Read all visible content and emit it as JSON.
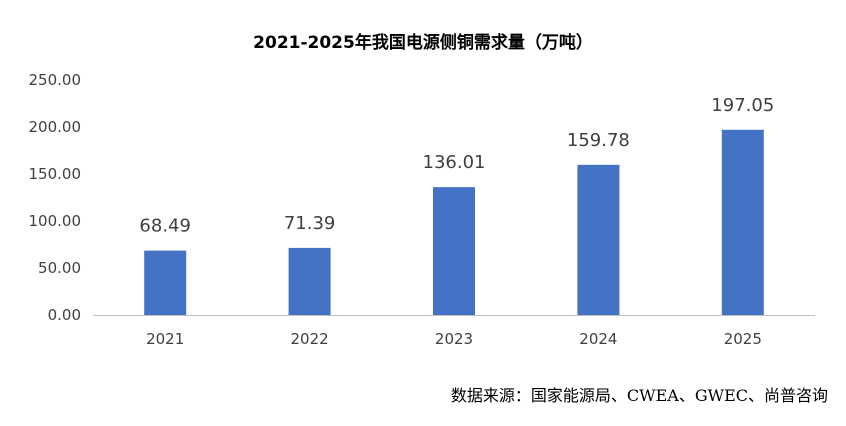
{
  "chart_data": {
    "type": "bar",
    "title": "2021-2025年我国电源侧铜需求量（万吨）",
    "categories": [
      "2021",
      "2022",
      "2023",
      "2024",
      "2025"
    ],
    "values": [
      68.49,
      71.39,
      136.01,
      159.78,
      197.05
    ],
    "value_labels": [
      "68.49",
      "71.39",
      "136.01",
      "159.78",
      "197.05"
    ],
    "yticks": [
      "0.00",
      "50.00",
      "100.00",
      "150.00",
      "200.00",
      "250.00"
    ],
    "ylim": [
      0,
      250
    ],
    "xlabel": "",
    "ylabel": "",
    "grid": false,
    "legend": "none",
    "bar_color": "#4472C4",
    "axis_color": "#BFBFBF"
  },
  "source_note": "数据来源：国家能源局、CWEA、GWEC、尚普咨询"
}
